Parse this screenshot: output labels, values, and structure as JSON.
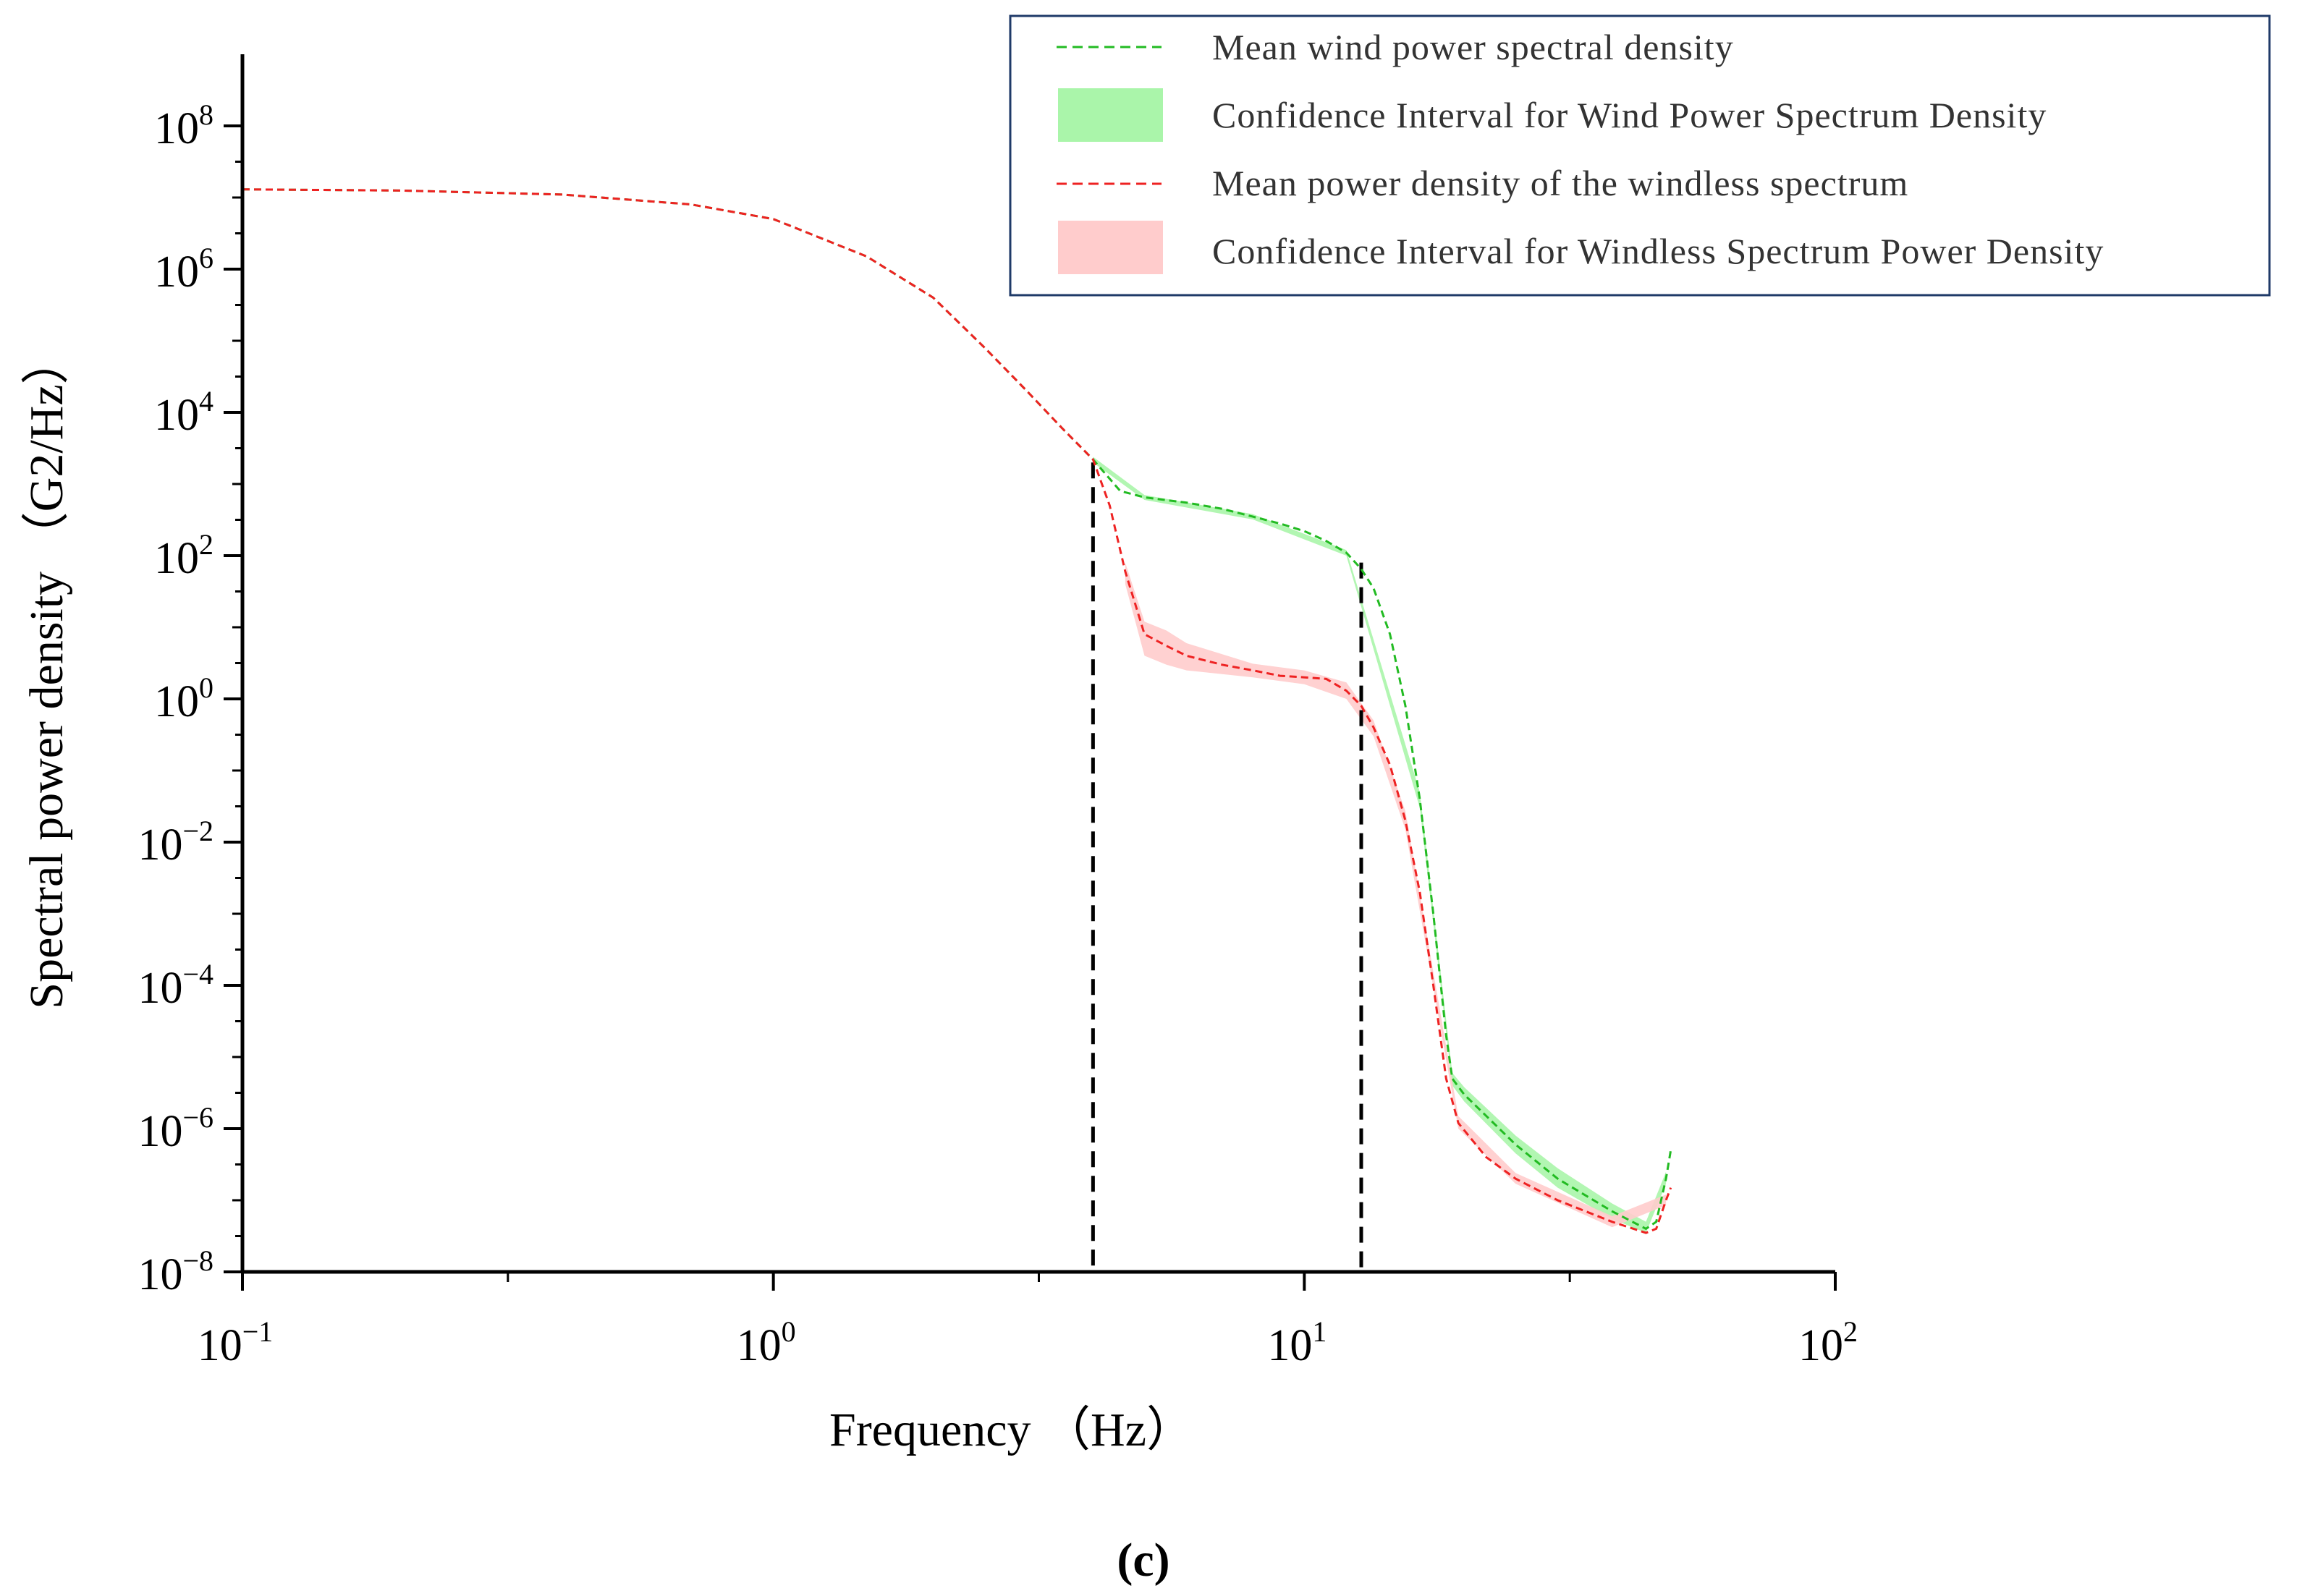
{
  "chart_data": {
    "type": "line",
    "xscale": "log",
    "yscale": "log",
    "xlim": [
      0.1,
      100
    ],
    "ylim": [
      1e-08,
      1000000000.0
    ],
    "xlabel": "Frequency （Hz）",
    "ylabel": "Spectral power density （G2/Hz）",
    "x_ticks": [
      {
        "base": "10",
        "exp": "−1",
        "value": 0.1
      },
      {
        "base": "10",
        "exp": "0",
        "value": 1
      },
      {
        "base": "10",
        "exp": "1",
        "value": 10
      },
      {
        "base": "10",
        "exp": "2",
        "value": 100
      }
    ],
    "y_ticks": [
      {
        "base": "10",
        "exp": "−8",
        "value": 1e-08
      },
      {
        "base": "10",
        "exp": "−6",
        "value": 1e-06
      },
      {
        "base": "10",
        "exp": "−4",
        "value": 0.0001
      },
      {
        "base": "10",
        "exp": "−2",
        "value": 0.01
      },
      {
        "base": "10",
        "exp": "0",
        "value": 1
      },
      {
        "base": "10",
        "exp": "2",
        "value": 100
      },
      {
        "base": "10",
        "exp": "4",
        "value": 10000.0
      },
      {
        "base": "10",
        "exp": "6",
        "value": 1000000.0
      },
      {
        "base": "10",
        "exp": "8",
        "value": 100000000.0
      }
    ],
    "legend_position": "top-right",
    "legend": [
      {
        "label": "Mean wind power spectral density",
        "kind": "dashed-line",
        "color": "#22bb22"
      },
      {
        "label": "Confidence Interval for Wind Power Spectrum Density",
        "kind": "band",
        "color": "#aaf5aa"
      },
      {
        "label": "Mean power density of the windless spectrum",
        "kind": "dashed-line",
        "color": "#ee2222"
      },
      {
        "label": "Confidence Interval for Windless Spectrum Power Density",
        "kind": "band",
        "color": "#ffcccc"
      }
    ],
    "series": [
      {
        "name": "Mean wind power spectral density",
        "color": "#22bb22",
        "band_color": "#aaf5aa",
        "points": [
          [
            0.1,
            13000000.0
          ],
          [
            0.2,
            12500000.0
          ],
          [
            0.4,
            11000000.0
          ],
          [
            0.7,
            8000000.0
          ],
          [
            1.0,
            5000000.0
          ],
          [
            1.5,
            1500000.0
          ],
          [
            2.0,
            400000.0
          ],
          [
            2.5,
            80000.0
          ],
          [
            3.0,
            20000.0
          ],
          [
            3.5,
            6000.0
          ],
          [
            4.0,
            2200.0
          ],
          [
            4.5,
            800.0
          ],
          [
            5.0,
            650.0
          ],
          [
            6.0,
            550.0
          ],
          [
            7.0,
            450.0
          ],
          [
            8.0,
            350.0
          ],
          [
            9.0,
            280.0
          ],
          [
            10.0,
            220.0
          ],
          [
            11.0,
            160.0
          ],
          [
            12.0,
            110.0
          ],
          [
            12.8,
            65
          ],
          [
            13.5,
            35
          ],
          [
            14.5,
            8
          ],
          [
            15.5,
            0.8
          ],
          [
            16.5,
            0.04
          ],
          [
            17.5,
            0.001
          ],
          [
            18.5,
            2e-05
          ],
          [
            19.0,
            5e-06
          ],
          [
            20.0,
            3e-06
          ],
          [
            25.0,
            6e-07
          ],
          [
            30.0,
            2e-07
          ],
          [
            38.0,
            7e-08
          ],
          [
            44.0,
            4e-08
          ],
          [
            46.0,
            5e-08
          ],
          [
            48.0,
            2e-07
          ],
          [
            49.0,
            5e-07
          ]
        ],
        "band": [
          [
            4.0,
            2000.0,
            2400.0
          ],
          [
            5.0,
            600.0,
            700.0
          ],
          [
            8.0,
            320.0,
            380.0
          ],
          [
            12.0,
            100.0,
            120.0
          ],
          [
            16.5,
            0.03,
            0.05
          ],
          [
            19.0,
            4e-06,
            6e-06
          ],
          [
            20.0,
            2.4e-06,
            3.8e-06
          ],
          [
            25.0,
            4.5e-07,
            8e-07
          ],
          [
            30.0,
            1.5e-07,
            2.8e-07
          ],
          [
            38.0,
            5.5e-08,
            9e-08
          ],
          [
            44.0,
            3.5e-08,
            5e-08
          ],
          [
            48.0,
            1.7e-07,
            2.5e-07
          ]
        ]
      },
      {
        "name": "Mean power density of the windless spectrum",
        "color": "#ee2222",
        "band_color": "#ffcccc",
        "points": [
          [
            0.1,
            13000000.0
          ],
          [
            0.2,
            12500000.0
          ],
          [
            0.4,
            11000000.0
          ],
          [
            0.7,
            8000000.0
          ],
          [
            1.0,
            5000000.0
          ],
          [
            1.5,
            1500000.0
          ],
          [
            2.0,
            400000.0
          ],
          [
            2.5,
            80000.0
          ],
          [
            3.0,
            20000.0
          ],
          [
            3.5,
            6000.0
          ],
          [
            4.0,
            2200.0
          ],
          [
            4.3,
            500.0
          ],
          [
            4.6,
            60
          ],
          [
            5.0,
            8
          ],
          [
            5.5,
            5.5
          ],
          [
            6.0,
            4
          ],
          [
            7.0,
            3
          ],
          [
            8.0,
            2.5
          ],
          [
            9.0,
            2.1
          ],
          [
            10.0,
            2.0
          ],
          [
            11.0,
            1.9
          ],
          [
            12.0,
            1.3
          ],
          [
            12.8,
            0.8
          ],
          [
            13.5,
            0.4
          ],
          [
            14.5,
            0.12
          ],
          [
            15.5,
            0.02
          ],
          [
            16.5,
            0.002
          ],
          [
            17.5,
            0.0001
          ],
          [
            18.5,
            5e-06
          ],
          [
            19.5,
            1.2e-06
          ],
          [
            22.0,
            4e-07
          ],
          [
            25.0,
            2e-07
          ],
          [
            30.0,
            1e-07
          ],
          [
            38.0,
            5e-08
          ],
          [
            44.0,
            3.5e-08
          ],
          [
            46.0,
            4e-08
          ],
          [
            48.0,
            1e-07
          ],
          [
            49.0,
            1.5e-07
          ]
        ],
        "band": [
          [
            4.6,
            40,
            80
          ],
          [
            5.0,
            4,
            12
          ],
          [
            5.5,
            3,
            9
          ],
          [
            6.0,
            2.5,
            6
          ],
          [
            8.0,
            2.0,
            3.1
          ],
          [
            10.0,
            1.6,
            2.5
          ],
          [
            12.0,
            1.0,
            1.7
          ],
          [
            13.5,
            0.3,
            0.5
          ],
          [
            15.5,
            0.015,
            0.027
          ],
          [
            19.5,
            1e-06,
            1.5e-06
          ],
          [
            25.0,
            1.7e-07,
            2.4e-07
          ],
          [
            38.0,
            4.2e-08,
            6e-08
          ],
          [
            48.0,
            8.5e-08,
            1.2e-07
          ]
        ]
      }
    ],
    "reference_lines": [
      {
        "style": "dashed",
        "color": "#000000",
        "x": 4.0,
        "y_top": 2000.0
      },
      {
        "style": "dashed",
        "color": "#000000",
        "x": 12.8,
        "y_top": 80
      }
    ]
  },
  "caption": "(c)"
}
